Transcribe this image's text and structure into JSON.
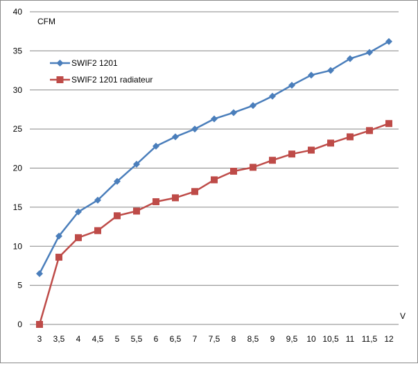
{
  "chart_data": {
    "type": "line",
    "title": "",
    "ylabel": "CFM",
    "xlabel": "V",
    "x": [
      "3",
      "3,5",
      "4",
      "4,5",
      "5",
      "5,5",
      "6",
      "6,5",
      "7",
      "7,5",
      "8",
      "8,5",
      "9",
      "9,5",
      "10",
      "10,5",
      "11",
      "11,5",
      "12"
    ],
    "ylim": [
      0,
      40
    ],
    "yticks": [
      0,
      5,
      10,
      15,
      20,
      25,
      30,
      35,
      40
    ],
    "grid": "horizontal",
    "legend_position": "top-left",
    "series": [
      {
        "name": "SWIF2 1201",
        "color": "#4a7ebb",
        "marker": "diamond",
        "values": [
          6.5,
          11.3,
          14.4,
          15.9,
          18.3,
          20.5,
          22.8,
          24.0,
          25.0,
          26.3,
          27.1,
          28.0,
          29.2,
          30.6,
          31.9,
          32.5,
          34.0,
          34.8,
          36.2
        ]
      },
      {
        "name": "SWIF2 1201 radiateur",
        "color": "#be4b48",
        "marker": "square",
        "values": [
          0.0,
          8.6,
          11.1,
          12.0,
          13.9,
          14.5,
          15.7,
          16.2,
          17.0,
          18.5,
          19.6,
          20.1,
          21.0,
          21.8,
          22.3,
          23.2,
          24.0,
          24.8,
          25.7
        ]
      }
    ]
  }
}
